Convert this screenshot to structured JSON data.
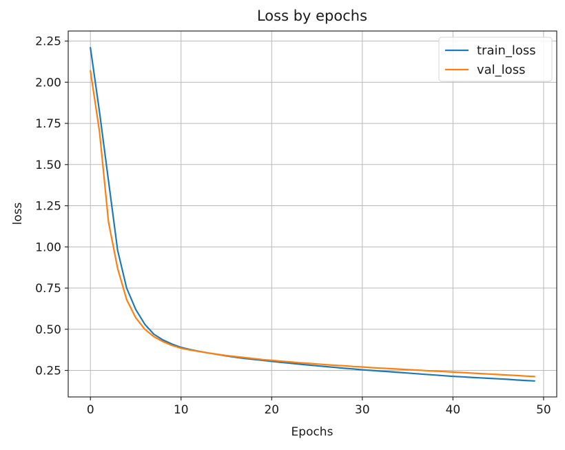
{
  "chart_data": {
    "type": "line",
    "title": "Loss by epochs",
    "xlabel": "Epochs",
    "ylabel": "loss",
    "x": [
      0,
      1,
      2,
      3,
      4,
      5,
      6,
      7,
      8,
      9,
      10,
      11,
      12,
      13,
      14,
      15,
      16,
      17,
      18,
      19,
      20,
      21,
      22,
      23,
      24,
      25,
      26,
      27,
      28,
      29,
      30,
      31,
      32,
      33,
      34,
      35,
      36,
      37,
      38,
      39,
      40,
      41,
      42,
      43,
      44,
      45,
      46,
      47,
      48,
      49
    ],
    "series": [
      {
        "name": "train_loss",
        "color": "#1f77b4",
        "values": [
          2.21,
          1.82,
          1.4,
          0.98,
          0.75,
          0.62,
          0.53,
          0.47,
          0.435,
          0.41,
          0.39,
          0.377,
          0.366,
          0.356,
          0.347,
          0.338,
          0.33,
          0.323,
          0.317,
          0.311,
          0.305,
          0.299,
          0.294,
          0.288,
          0.283,
          0.278,
          0.273,
          0.268,
          0.263,
          0.259,
          0.254,
          0.25,
          0.246,
          0.242,
          0.238,
          0.234,
          0.23,
          0.226,
          0.222,
          0.218,
          0.214,
          0.211,
          0.208,
          0.205,
          0.202,
          0.199,
          0.196,
          0.192,
          0.189,
          0.186
        ]
      },
      {
        "name": "val_loss",
        "color": "#ff7f0e",
        "values": [
          2.07,
          1.7,
          1.15,
          0.87,
          0.68,
          0.57,
          0.5,
          0.455,
          0.425,
          0.402,
          0.385,
          0.374,
          0.365,
          0.356,
          0.348,
          0.34,
          0.334,
          0.328,
          0.322,
          0.316,
          0.311,
          0.306,
          0.302,
          0.297,
          0.293,
          0.289,
          0.285,
          0.281,
          0.278,
          0.274,
          0.271,
          0.267,
          0.264,
          0.261,
          0.258,
          0.255,
          0.252,
          0.249,
          0.246,
          0.243,
          0.24,
          0.237,
          0.234,
          0.231,
          0.228,
          0.225,
          0.222,
          0.219,
          0.216,
          0.213
        ]
      }
    ],
    "xlim": [
      -2.45,
      51.45
    ],
    "ylim": [
      0.089,
      2.311
    ],
    "xticks": [
      0,
      10,
      20,
      30,
      40,
      50
    ],
    "yticks": [
      0.25,
      0.5,
      0.75,
      1.0,
      1.25,
      1.5,
      1.75,
      2.0,
      2.25
    ],
    "grid": true,
    "grid_color": "#b8b8b8",
    "spine_color": "#262626",
    "background_color": "#ffffff",
    "legend_position": "upper right",
    "line_width": 2.2
  }
}
